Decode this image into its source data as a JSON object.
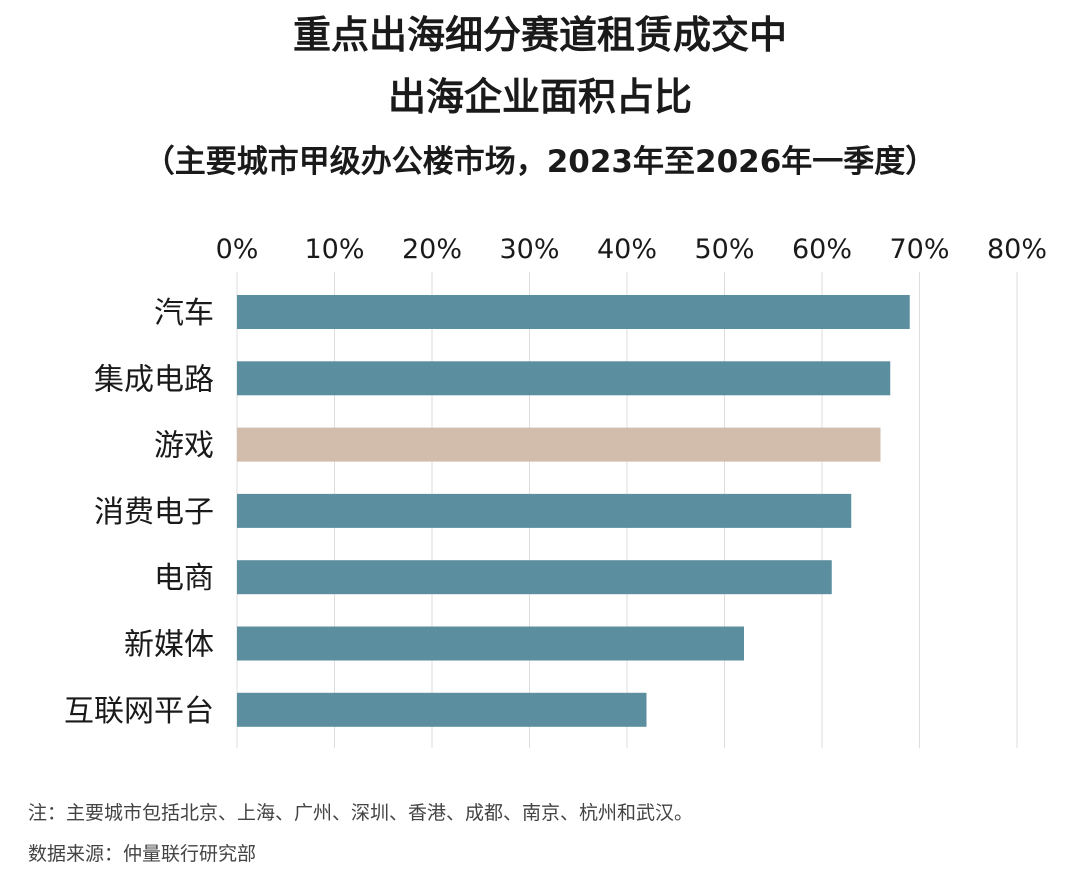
{
  "title_lines": [
    "重点出海细分赛道租赁成交中",
    "出海企业面积占比"
  ],
  "subtitle": "（主要城市甲级办公楼市场，2023年至2026年一季度）",
  "note": "注：主要城市包括北京、上海、广州、深圳、香港、成都、南京、杭州和武汉。",
  "source": "数据来源：仲量联行研究部",
  "colors": {
    "bar": "#5b8fa0",
    "highlight": "#d2bcac",
    "grid": "#dddddd"
  },
  "chart_data": {
    "type": "bar",
    "orientation": "horizontal",
    "title": "重点出海细分赛道租赁成交中出海企业面积占比",
    "subtitle": "（主要城市甲级办公楼市场，2023年至2026年一季度）",
    "categories": [
      "汽车",
      "集成电路",
      "游戏",
      "消费电子",
      "电商",
      "新媒体",
      "互联网平台"
    ],
    "values": [
      69,
      67,
      66,
      63,
      61,
      52,
      42
    ],
    "unit": "%",
    "highlight_category": "游戏",
    "x_axis_position": "top",
    "xlim": [
      0,
      80
    ],
    "xticks": [
      "0%",
      "10%",
      "20%",
      "30%",
      "40%",
      "50%",
      "60%",
      "70%",
      "80%"
    ],
    "grid": true
  }
}
